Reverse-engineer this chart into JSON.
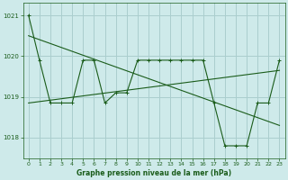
{
  "line1_x": [
    0,
    1,
    2,
    3,
    4,
    5,
    6,
    7,
    8,
    9,
    10,
    11,
    12,
    13,
    14,
    15,
    16,
    17,
    18,
    19,
    20,
    21,
    22,
    23
  ],
  "line1_y": [
    1021.0,
    1019.9,
    1018.85,
    1018.85,
    1018.85,
    1019.9,
    1019.9,
    1018.85,
    1019.1,
    1019.1,
    1019.9,
    1019.9,
    1019.9,
    1019.9,
    1019.9,
    1019.9,
    1019.9,
    1018.85,
    1017.8,
    1017.8,
    1017.8,
    1018.85,
    1018.85,
    1019.9
  ],
  "line2_x": [
    0,
    23
  ],
  "line2_y": [
    1020.5,
    1018.3
  ],
  "line3_x": [
    0,
    23
  ],
  "line3_y": [
    1018.85,
    1019.65
  ],
  "background_color": "#ceeaea",
  "grid_color": "#aacece",
  "line_color": "#1a5c1a",
  "xlabel": "Graphe pression niveau de la mer (hPa)",
  "xlabel_color": "#1a5c1a",
  "tick_color": "#1a5c1a",
  "spine_color": "#1a5c1a",
  "ylim": [
    1017.5,
    1021.3
  ],
  "xlim": [
    -0.5,
    23.5
  ],
  "yticks": [
    1018,
    1019,
    1020,
    1021
  ],
  "xticks": [
    0,
    1,
    2,
    3,
    4,
    5,
    6,
    7,
    8,
    9,
    10,
    11,
    12,
    13,
    14,
    15,
    16,
    17,
    18,
    19,
    20,
    21,
    22,
    23
  ],
  "linewidth": 0.8,
  "markersize": 2.5
}
